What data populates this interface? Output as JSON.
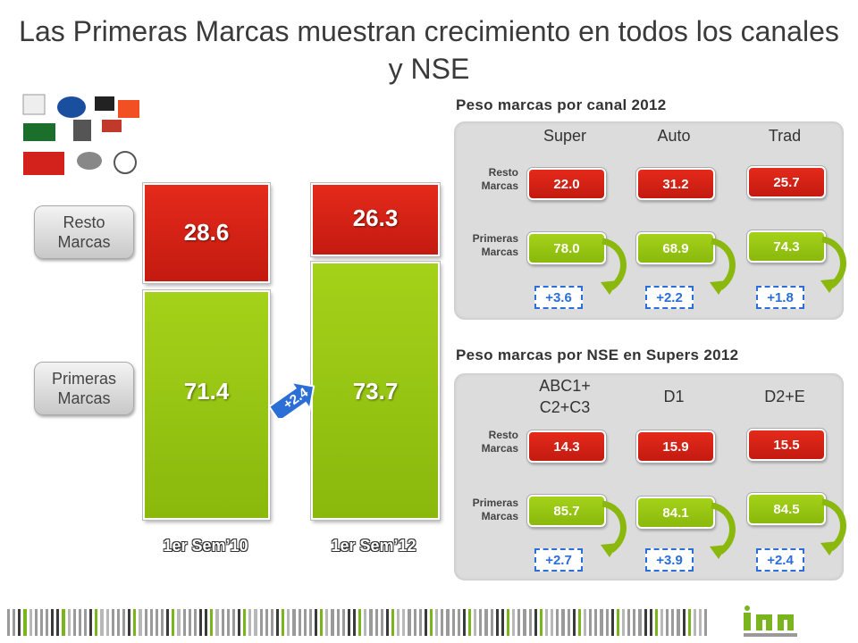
{
  "title": "Las Primeras Marcas muestran crecimiento en todos los canales y NSE",
  "legend": {
    "resto": "Resto Marcas",
    "primeras": "Primeras Marcas"
  },
  "main_chart": {
    "bars": [
      {
        "period": "1er Sem’10",
        "resto": "28.6",
        "primeras": "71.4"
      },
      {
        "period": "1er Sem’12",
        "resto": "26.3",
        "primeras": "73.7"
      }
    ],
    "change": "+2.4"
  },
  "canal": {
    "title": "Peso marcas por canal 2012",
    "row_resto": "Resto Marcas",
    "row_primeras": "Primeras Marcas",
    "columns": [
      {
        "name": "Super",
        "resto": "22.0",
        "primeras": "78.0",
        "delta": "+3.6"
      },
      {
        "name": "Auto",
        "resto": "31.2",
        "primeras": "68.9",
        "delta": "+2.2"
      },
      {
        "name": "Trad",
        "resto": "25.7",
        "primeras": "74.3",
        "delta": "+1.8"
      }
    ]
  },
  "nse": {
    "title": "Peso marcas por NSE en Supers 2012",
    "row_resto": "Resto Marcas",
    "row_primeras": "Primeras Marcas",
    "columns": [
      {
        "name": "ABC1+ C2+C3",
        "resto": "14.3",
        "primeras": "85.7",
        "delta": "+2.7"
      },
      {
        "name": "D1",
        "resto": "15.9",
        "primeras": "84.1",
        "delta": "+3.9"
      },
      {
        "name": "D2+E",
        "resto": "15.5",
        "primeras": "84.5",
        "delta": "+2.4"
      }
    ]
  },
  "colors": {
    "red": "#d42216",
    "green": "#97c512",
    "blue": "#2b6fd6",
    "panel": "#dcdcdc"
  },
  "icons": {
    "logos": "brand-logos-collage",
    "company": "inn-information-now-logo"
  }
}
